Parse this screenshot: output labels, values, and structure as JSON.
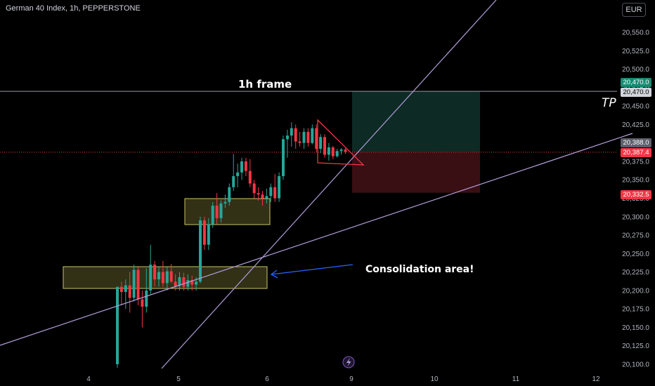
{
  "header": {
    "symbol_line": "German 40 Index, 1h, PEPPERSTONE"
  },
  "currency_button": "EUR",
  "annotations": {
    "frame_label": "1h frame",
    "tp_label": "TP",
    "consolidation_label": "Consolidation area!"
  },
  "price_tags": {
    "tp_top": "20,470.0",
    "tp_bottom": "20,470.0",
    "entry_top": "20,388.0",
    "entry_bottom": "20,387.4",
    "stop": "20,332.5"
  },
  "colors": {
    "background": "#000000",
    "bull": "#26a69a",
    "bear": "#f23645",
    "zone_fill": "#3b3a1a",
    "zone_border": "#c9c46a",
    "trendline": "#b39ddb",
    "profit_fill": "#0d2b24",
    "loss_fill": "#3a0f14",
    "arrow": "#2962ff",
    "triangle": "#f23645"
  },
  "chart_data": {
    "type": "candlestick",
    "title": "German 40 Index, 1h, PEPPERSTONE",
    "ylim": [
      20095,
      20575
    ],
    "y_ticks": [
      "20,100.0",
      "20,125.0",
      "20,150.0",
      "20,175.0",
      "20,200.0",
      "20,225.0",
      "20,250.0",
      "20,275.0",
      "20,300.0",
      "20,325.0",
      "20,350.0",
      "20,375.0",
      "20,400.0",
      "20,425.0",
      "20,450.0",
      "20,475.0",
      "20,500.0",
      "20,525.0",
      "20,550.0"
    ],
    "x_ticks": [
      "4",
      "5",
      "6",
      "9",
      "10",
      "11",
      "12"
    ],
    "levels": {
      "take_profit": 20470.0,
      "entry": 20388.0,
      "last_price": 20387.4,
      "stop": 20332.5
    },
    "candles": [
      {
        "o": 20100,
        "h": 20205,
        "l": 20095,
        "c": 20205
      },
      {
        "o": 20205,
        "h": 20212,
        "l": 20180,
        "c": 20198
      },
      {
        "o": 20198,
        "h": 20215,
        "l": 20175,
        "c": 20207
      },
      {
        "o": 20207,
        "h": 20225,
        "l": 20170,
        "c": 20190
      },
      {
        "o": 20190,
        "h": 20235,
        "l": 20185,
        "c": 20228
      },
      {
        "o": 20228,
        "h": 20232,
        "l": 20180,
        "c": 20188
      },
      {
        "o": 20188,
        "h": 20200,
        "l": 20150,
        "c": 20178
      },
      {
        "o": 20178,
        "h": 20230,
        "l": 20170,
        "c": 20200
      },
      {
        "o": 20200,
        "h": 20262,
        "l": 20195,
        "c": 20235
      },
      {
        "o": 20235,
        "h": 20240,
        "l": 20205,
        "c": 20215
      },
      {
        "o": 20215,
        "h": 20232,
        "l": 20205,
        "c": 20225
      },
      {
        "o": 20225,
        "h": 20240,
        "l": 20205,
        "c": 20210
      },
      {
        "o": 20210,
        "h": 20232,
        "l": 20200,
        "c": 20226
      },
      {
        "o": 20226,
        "h": 20236,
        "l": 20210,
        "c": 20212
      },
      {
        "o": 20212,
        "h": 20222,
        "l": 20200,
        "c": 20206
      },
      {
        "o": 20206,
        "h": 20225,
        "l": 20200,
        "c": 20218
      },
      {
        "o": 20218,
        "h": 20224,
        "l": 20200,
        "c": 20205
      },
      {
        "o": 20205,
        "h": 20222,
        "l": 20200,
        "c": 20214
      },
      {
        "o": 20214,
        "h": 20220,
        "l": 20200,
        "c": 20208
      },
      {
        "o": 20208,
        "h": 20218,
        "l": 20200,
        "c": 20212
      },
      {
        "o": 20212,
        "h": 20300,
        "l": 20210,
        "c": 20295
      },
      {
        "o": 20295,
        "h": 20300,
        "l": 20255,
        "c": 20262
      },
      {
        "o": 20262,
        "h": 20298,
        "l": 20255,
        "c": 20290
      },
      {
        "o": 20290,
        "h": 20320,
        "l": 20285,
        "c": 20315
      },
      {
        "o": 20315,
        "h": 20332,
        "l": 20290,
        "c": 20298
      },
      {
        "o": 20298,
        "h": 20322,
        "l": 20292,
        "c": 20318
      },
      {
        "o": 20318,
        "h": 20330,
        "l": 20312,
        "c": 20320
      },
      {
        "o": 20320,
        "h": 20345,
        "l": 20315,
        "c": 20340
      },
      {
        "o": 20340,
        "h": 20385,
        "l": 20335,
        "c": 20355
      },
      {
        "o": 20355,
        "h": 20372,
        "l": 20340,
        "c": 20360
      },
      {
        "o": 20360,
        "h": 20380,
        "l": 20350,
        "c": 20375
      },
      {
        "o": 20375,
        "h": 20380,
        "l": 20355,
        "c": 20362
      },
      {
        "o": 20362,
        "h": 20378,
        "l": 20340,
        "c": 20345
      },
      {
        "o": 20345,
        "h": 20350,
        "l": 20325,
        "c": 20332
      },
      {
        "o": 20332,
        "h": 20340,
        "l": 20322,
        "c": 20330
      },
      {
        "o": 20330,
        "h": 20335,
        "l": 20315,
        "c": 20325
      },
      {
        "o": 20325,
        "h": 20338,
        "l": 20318,
        "c": 20328
      },
      {
        "o": 20328,
        "h": 20345,
        "l": 20320,
        "c": 20340
      },
      {
        "o": 20340,
        "h": 20358,
        "l": 20320,
        "c": 20325
      },
      {
        "o": 20325,
        "h": 20360,
        "l": 20320,
        "c": 20355
      },
      {
        "o": 20355,
        "h": 20410,
        "l": 20350,
        "c": 20405
      },
      {
        "o": 20405,
        "h": 20418,
        "l": 20380,
        "c": 20410
      },
      {
        "o": 20410,
        "h": 20428,
        "l": 20395,
        "c": 20420
      },
      {
        "o": 20420,
        "h": 20425,
        "l": 20392,
        "c": 20402
      },
      {
        "o": 20402,
        "h": 20415,
        "l": 20395,
        "c": 20400
      },
      {
        "o": 20400,
        "h": 20420,
        "l": 20392,
        "c": 20415
      },
      {
        "o": 20415,
        "h": 20420,
        "l": 20395,
        "c": 20400
      },
      {
        "o": 20400,
        "h": 20425,
        "l": 20398,
        "c": 20420
      },
      {
        "o": 20420,
        "h": 20425,
        "l": 20388,
        "c": 20392
      },
      {
        "o": 20392,
        "h": 20412,
        "l": 20386,
        "c": 20408
      },
      {
        "o": 20408,
        "h": 20412,
        "l": 20380,
        "c": 20384
      },
      {
        "o": 20384,
        "h": 20400,
        "l": 20376,
        "c": 20394
      },
      {
        "o": 20394,
        "h": 20396,
        "l": 20378,
        "c": 20382
      },
      {
        "o": 20382,
        "h": 20392,
        "l": 20380,
        "c": 20389
      },
      {
        "o": 20389,
        "h": 20393,
        "l": 20384,
        "c": 20391
      },
      {
        "o": 20391,
        "h": 20393,
        "l": 20385,
        "c": 20388
      }
    ]
  }
}
